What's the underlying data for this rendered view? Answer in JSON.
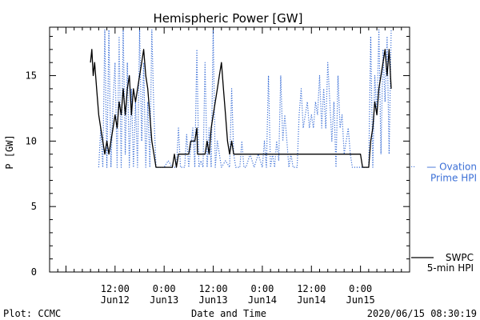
{
  "chart_data": {
    "type": "line",
    "title": "Hemispheric Power [GW]",
    "ylabel": "P [GW]",
    "xlabel": "Date and Time",
    "ylim": [
      0,
      18.7
    ],
    "yticks": [
      0,
      5,
      10,
      15
    ],
    "xlim": [
      "2020-06-11 20:00",
      "2020-06-15 12:00"
    ],
    "x_tick_labels": [
      {
        "time": "2020-06-12 12:00",
        "line1": "12:00",
        "line2": "Jun12"
      },
      {
        "time": "2020-06-13 00:00",
        "line1": "0:00",
        "line2": "Jun13"
      },
      {
        "time": "2020-06-13 12:00",
        "line1": "12:00",
        "line2": "Jun13"
      },
      {
        "time": "2020-06-14 00:00",
        "line1": "0:00",
        "line2": "Jun14"
      },
      {
        "time": "2020-06-14 12:00",
        "line1": "12:00",
        "line2": "Jun14"
      },
      {
        "time": "2020-06-15 00:00",
        "line1": "0:00",
        "line2": "Jun15"
      }
    ],
    "series": [
      {
        "name": "Ovation Prime HPI",
        "label_lines": [
          "— Ovation",
          "Prime HPI"
        ],
        "color": "#3b6fd6",
        "style": "dotted",
        "points": [
          [
            "2020-06-12 08:00",
            8
          ],
          [
            "2020-06-12 08:30",
            11
          ],
          [
            "2020-06-12 09:00",
            8
          ],
          [
            "2020-06-12 09:30",
            18.5
          ],
          [
            "2020-06-12 10:00",
            8
          ],
          [
            "2020-06-12 10:30",
            18.5
          ],
          [
            "2020-06-12 11:00",
            8
          ],
          [
            "2020-06-12 11:30",
            13
          ],
          [
            "2020-06-12 12:00",
            16
          ],
          [
            "2020-06-12 12:30",
            8
          ],
          [
            "2020-06-12 13:00",
            18
          ],
          [
            "2020-06-12 13:30",
            8
          ],
          [
            "2020-06-12 14:00",
            18.5
          ],
          [
            "2020-06-12 14:30",
            9
          ],
          [
            "2020-06-12 15:00",
            16
          ],
          [
            "2020-06-12 15:30",
            8
          ],
          [
            "2020-06-12 16:00",
            14
          ],
          [
            "2020-06-12 16:30",
            8
          ],
          [
            "2020-06-12 17:00",
            13
          ],
          [
            "2020-06-12 17:30",
            8
          ],
          [
            "2020-06-12 18:00",
            18.5
          ],
          [
            "2020-06-12 18:30",
            10
          ],
          [
            "2020-06-12 19:00",
            16
          ],
          [
            "2020-06-12 19:30",
            8
          ],
          [
            "2020-06-12 20:00",
            13
          ],
          [
            "2020-06-12 20:30",
            8
          ],
          [
            "2020-06-12 21:00",
            18.5
          ],
          [
            "2020-06-12 21:30",
            12
          ],
          [
            "2020-06-12 22:00",
            8
          ],
          [
            "2020-06-12 23:00",
            8
          ],
          [
            "2020-06-13 00:00",
            8
          ],
          [
            "2020-06-13 01:00",
            8.5
          ],
          [
            "2020-06-13 02:00",
            8
          ],
          [
            "2020-06-13 03:00",
            8
          ],
          [
            "2020-06-13 03:30",
            11
          ],
          [
            "2020-06-13 04:00",
            8
          ],
          [
            "2020-06-13 05:00",
            8
          ],
          [
            "2020-06-13 05:30",
            10.5
          ],
          [
            "2020-06-13 06:00",
            8
          ],
          [
            "2020-06-13 07:00",
            11
          ],
          [
            "2020-06-13 07:30",
            8
          ],
          [
            "2020-06-13 08:00",
            17
          ],
          [
            "2020-06-13 08:30",
            8
          ],
          [
            "2020-06-13 09:00",
            8.5
          ],
          [
            "2020-06-13 09:30",
            8
          ],
          [
            "2020-06-13 10:00",
            16
          ],
          [
            "2020-06-13 10:30",
            8
          ],
          [
            "2020-06-13 11:00",
            11
          ],
          [
            "2020-06-13 11:30",
            8
          ],
          [
            "2020-06-13 12:00",
            18.5
          ],
          [
            "2020-06-13 12:30",
            8
          ],
          [
            "2020-06-13 13:00",
            10
          ],
          [
            "2020-06-13 14:00",
            8
          ],
          [
            "2020-06-13 15:00",
            8.5
          ],
          [
            "2020-06-13 16:00",
            8
          ],
          [
            "2020-06-13 16:30",
            14
          ],
          [
            "2020-06-13 17:00",
            9
          ],
          [
            "2020-06-13 17:30",
            8
          ],
          [
            "2020-06-13 18:30",
            8
          ],
          [
            "2020-06-13 19:00",
            10
          ],
          [
            "2020-06-13 19:30",
            8
          ],
          [
            "2020-06-13 20:00",
            8
          ],
          [
            "2020-06-13 21:00",
            9
          ],
          [
            "2020-06-13 22:00",
            8
          ],
          [
            "2020-06-13 23:00",
            9
          ],
          [
            "2020-06-14 00:00",
            8
          ],
          [
            "2020-06-14 00:30",
            10
          ],
          [
            "2020-06-14 01:00",
            8
          ],
          [
            "2020-06-14 01:30",
            15
          ],
          [
            "2020-06-14 02:00",
            8
          ],
          [
            "2020-06-14 02:30",
            9
          ],
          [
            "2020-06-14 03:00",
            8
          ],
          [
            "2020-06-14 03:30",
            10
          ],
          [
            "2020-06-14 04:00",
            8.5
          ],
          [
            "2020-06-14 04:30",
            15
          ],
          [
            "2020-06-14 05:00",
            10
          ],
          [
            "2020-06-14 05:30",
            12
          ],
          [
            "2020-06-14 06:00",
            10
          ],
          [
            "2020-06-14 06:30",
            8
          ],
          [
            "2020-06-14 07:00",
            9
          ],
          [
            "2020-06-14 07:30",
            8
          ],
          [
            "2020-06-14 08:30",
            8
          ],
          [
            "2020-06-14 09:00",
            12
          ],
          [
            "2020-06-14 09:30",
            14
          ],
          [
            "2020-06-14 10:00",
            11
          ],
          [
            "2020-06-14 10:30",
            12
          ],
          [
            "2020-06-14 11:00",
            13
          ],
          [
            "2020-06-14 11:30",
            11
          ],
          [
            "2020-06-14 12:00",
            12
          ],
          [
            "2020-06-14 12:30",
            11
          ],
          [
            "2020-06-14 13:00",
            13
          ],
          [
            "2020-06-14 13:30",
            12
          ],
          [
            "2020-06-14 14:00",
            15
          ],
          [
            "2020-06-14 14:30",
            11
          ],
          [
            "2020-06-14 15:00",
            14
          ],
          [
            "2020-06-14 15:30",
            11
          ],
          [
            "2020-06-14 16:00",
            16
          ],
          [
            "2020-06-14 16:30",
            13
          ],
          [
            "2020-06-14 17:00",
            10
          ],
          [
            "2020-06-14 17:30",
            13
          ],
          [
            "2020-06-14 18:00",
            8
          ],
          [
            "2020-06-14 18:30",
            15
          ],
          [
            "2020-06-14 19:00",
            11
          ],
          [
            "2020-06-14 19:30",
            12
          ],
          [
            "2020-06-14 20:00",
            9
          ],
          [
            "2020-06-14 21:00",
            11
          ],
          [
            "2020-06-14 21:30",
            9
          ],
          [
            "2020-06-14 22:00",
            8
          ],
          [
            "2020-06-14 23:00",
            8
          ],
          [
            "2020-06-15 00:00",
            8
          ],
          [
            "2020-06-15 01:00",
            8
          ],
          [
            "2020-06-15 02:00",
            8
          ],
          [
            "2020-06-15 02:30",
            18
          ],
          [
            "2020-06-15 03:00",
            8
          ],
          [
            "2020-06-15 03:30",
            15
          ],
          [
            "2020-06-15 04:00",
            12
          ],
          [
            "2020-06-15 04:30",
            18.5
          ],
          [
            "2020-06-15 05:00",
            9
          ],
          [
            "2020-06-15 05:30",
            17
          ],
          [
            "2020-06-15 06:00",
            13
          ],
          [
            "2020-06-15 06:30",
            18
          ],
          [
            "2020-06-15 07:00",
            9
          ],
          [
            "2020-06-15 07:30",
            18.5
          ]
        ]
      },
      {
        "name": "SWPC 5-min HPI",
        "label_lines": [
          "SWPC",
          "5-min HPI"
        ],
        "color": "#000000",
        "style": "solid",
        "points": [
          [
            "2020-06-12 06:00",
            16
          ],
          [
            "2020-06-12 06:20",
            17
          ],
          [
            "2020-06-12 06:40",
            15
          ],
          [
            "2020-06-12 07:00",
            16
          ],
          [
            "2020-06-12 07:30",
            14
          ],
          [
            "2020-06-12 08:00",
            12
          ],
          [
            "2020-06-12 08:30",
            11
          ],
          [
            "2020-06-12 09:00",
            10
          ],
          [
            "2020-06-12 09:30",
            9
          ],
          [
            "2020-06-12 10:00",
            10
          ],
          [
            "2020-06-12 10:30",
            9
          ],
          [
            "2020-06-12 11:00",
            10
          ],
          [
            "2020-06-12 11:30",
            11
          ],
          [
            "2020-06-12 12:00",
            12
          ],
          [
            "2020-06-12 12:30",
            11
          ],
          [
            "2020-06-12 13:00",
            13
          ],
          [
            "2020-06-12 13:30",
            12
          ],
          [
            "2020-06-12 14:00",
            14
          ],
          [
            "2020-06-12 14:30",
            12
          ],
          [
            "2020-06-12 15:00",
            14
          ],
          [
            "2020-06-12 15:30",
            15
          ],
          [
            "2020-06-12 16:00",
            12
          ],
          [
            "2020-06-12 16:30",
            14
          ],
          [
            "2020-06-12 17:00",
            13
          ],
          [
            "2020-06-12 18:00",
            15
          ],
          [
            "2020-06-12 18:30",
            16
          ],
          [
            "2020-06-12 19:00",
            17
          ],
          [
            "2020-06-12 19:30",
            15
          ],
          [
            "2020-06-12 20:00",
            14
          ],
          [
            "2020-06-12 20:30",
            12
          ],
          [
            "2020-06-12 21:00",
            10
          ],
          [
            "2020-06-12 21:30",
            9
          ],
          [
            "2020-06-12 22:00",
            8
          ],
          [
            "2020-06-12 23:00",
            8
          ],
          [
            "2020-06-13 00:00",
            8
          ],
          [
            "2020-06-13 01:00",
            8
          ],
          [
            "2020-06-13 02:00",
            8
          ],
          [
            "2020-06-13 02:30",
            9
          ],
          [
            "2020-06-13 03:00",
            8
          ],
          [
            "2020-06-13 03:30",
            9
          ],
          [
            "2020-06-13 04:00",
            9
          ],
          [
            "2020-06-13 05:00",
            9
          ],
          [
            "2020-06-13 06:00",
            9
          ],
          [
            "2020-06-13 06:30",
            10
          ],
          [
            "2020-06-13 07:00",
            10
          ],
          [
            "2020-06-13 07:30",
            10
          ],
          [
            "2020-06-13 08:00",
            11
          ],
          [
            "2020-06-13 08:10",
            9
          ],
          [
            "2020-06-13 09:00",
            9
          ],
          [
            "2020-06-13 10:00",
            9
          ],
          [
            "2020-06-13 10:30",
            10
          ],
          [
            "2020-06-13 11:00",
            9
          ],
          [
            "2020-06-13 11:30",
            11
          ],
          [
            "2020-06-13 12:00",
            12
          ],
          [
            "2020-06-13 12:30",
            13
          ],
          [
            "2020-06-13 13:00",
            14
          ],
          [
            "2020-06-13 13:30",
            15
          ],
          [
            "2020-06-13 14:00",
            16
          ],
          [
            "2020-06-13 14:30",
            14
          ],
          [
            "2020-06-13 15:00",
            12
          ],
          [
            "2020-06-13 15:30",
            10
          ],
          [
            "2020-06-13 16:00",
            9
          ],
          [
            "2020-06-13 16:30",
            10
          ],
          [
            "2020-06-13 17:00",
            9
          ],
          [
            "2020-06-13 18:00",
            9
          ],
          [
            "2020-06-14 00:00",
            9
          ],
          [
            "2020-06-14 12:00",
            9
          ],
          [
            "2020-06-14 18:00",
            9
          ],
          [
            "2020-06-15 00:00",
            9
          ],
          [
            "2020-06-15 00:30",
            8
          ],
          [
            "2020-06-15 01:00",
            8
          ],
          [
            "2020-06-15 02:00",
            8
          ],
          [
            "2020-06-15 02:30",
            10
          ],
          [
            "2020-06-15 03:00",
            11
          ],
          [
            "2020-06-15 03:30",
            13
          ],
          [
            "2020-06-15 04:00",
            12
          ],
          [
            "2020-06-15 04:30",
            14
          ],
          [
            "2020-06-15 05:00",
            15
          ],
          [
            "2020-06-15 05:30",
            16
          ],
          [
            "2020-06-15 06:00",
            17
          ],
          [
            "2020-06-15 06:30",
            15
          ],
          [
            "2020-06-15 07:00",
            17
          ],
          [
            "2020-06-15 07:30",
            14
          ]
        ]
      }
    ],
    "grid": false,
    "legend_placement": "right"
  },
  "footer": {
    "left": "Plot: CCMC",
    "center": "Date and Time",
    "right": "2020/06/15 08:30:19"
  }
}
